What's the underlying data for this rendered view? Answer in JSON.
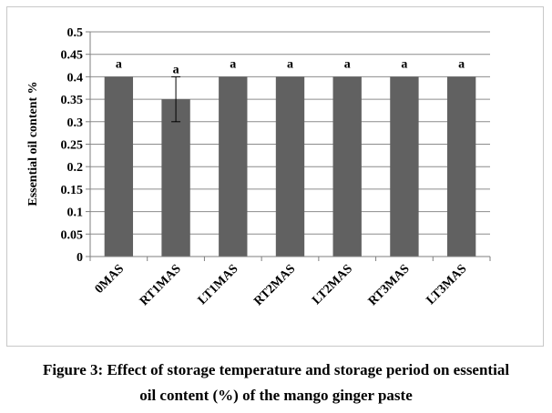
{
  "chart_data": {
    "type": "bar",
    "categories": [
      "0MAS",
      "RT1MAS",
      "LT1MAS",
      "RT2MAS",
      "LT2MAS",
      "RT3MAS",
      "LT3MAS"
    ],
    "values": [
      0.4,
      0.35,
      0.4,
      0.4,
      0.4,
      0.4,
      0.4
    ],
    "error_bars": [
      0,
      0.05,
      0,
      0,
      0,
      0,
      0
    ],
    "significance_letters": [
      "a",
      "a",
      "a",
      "a",
      "a",
      "a",
      "a"
    ],
    "ylabel": "Essential oil content %",
    "xlabel": "",
    "ylim": [
      0,
      0.5
    ],
    "yticks": [
      "0",
      "0.05",
      "0.1",
      "0.15",
      "0.2",
      "0.25",
      "0.3",
      "0.35",
      "0.4",
      "0.45",
      "0.5"
    ],
    "grid": true,
    "legend": "none",
    "bar_color": "#616161"
  },
  "caption": {
    "line1": "Figure 3: Effect of storage temperature and storage period on essential",
    "line2": "oil content (%) of the mango ginger paste"
  }
}
